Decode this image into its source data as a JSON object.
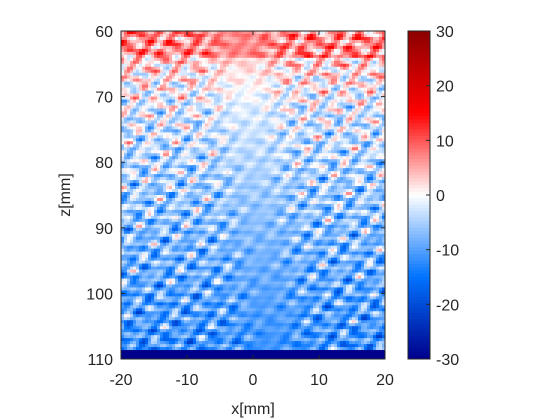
{
  "chart_data": {
    "type": "heatmap",
    "title": "",
    "xlabel": "x[mm]",
    "ylabel": "z[mm]",
    "xlim": [
      -20,
      20
    ],
    "ylim": [
      60,
      110
    ],
    "y_reversed": true,
    "x_ticks": [
      -20,
      -10,
      0,
      10,
      20
    ],
    "y_ticks": [
      60,
      70,
      80,
      90,
      100,
      110
    ],
    "grid": false,
    "colorbar": {
      "colormap": "blue-white-red",
      "range": [
        -30,
        30
      ],
      "ticks": [
        30,
        20,
        10,
        0,
        -10,
        -20,
        -30
      ],
      "placement": "right",
      "low_color": "#00008b",
      "mid_color": "#ffffff",
      "high_color": "#8b0000"
    },
    "field_description_values": {
      "top_band_mean": 3,
      "upper_region_mean": -2,
      "middle_region_mean": -7,
      "lower_region_mean": -12,
      "bottom_edge_value": -30
    }
  }
}
